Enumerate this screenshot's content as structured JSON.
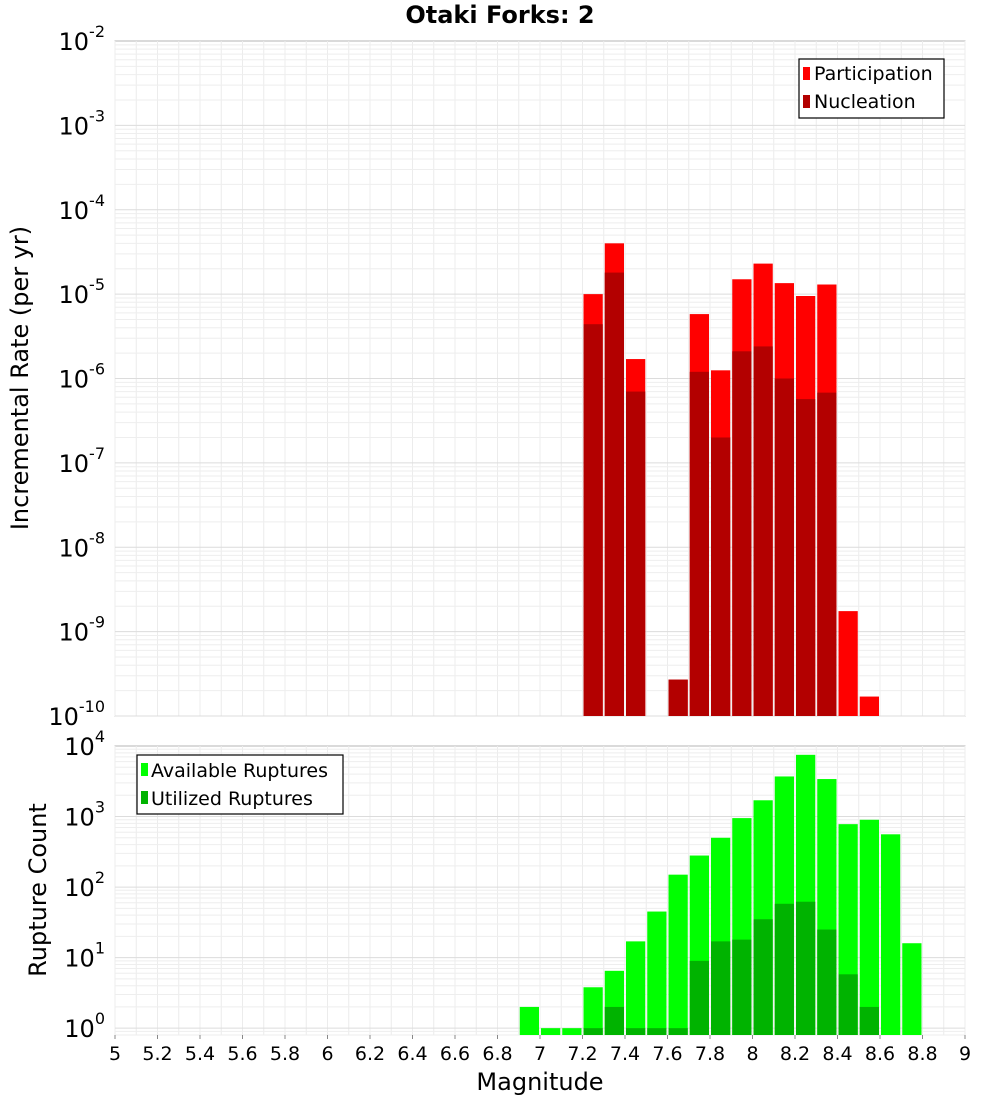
{
  "chart_data": [
    {
      "type": "bar",
      "title": "Otaki Forks: 2",
      "ylabel": "Incremental Rate (per yr)",
      "xlabel": "",
      "y_scale": "log",
      "ylim": [
        1e-10,
        0.01
      ],
      "xlim": [
        5,
        9
      ],
      "y_ticks": [
        {
          "base": "10",
          "exp": "-2",
          "value": 0.01
        },
        {
          "base": "10",
          "exp": "-3",
          "value": 0.001
        },
        {
          "base": "10",
          "exp": "-4",
          "value": 0.0001
        },
        {
          "base": "10",
          "exp": "-5",
          "value": 1e-05
        },
        {
          "base": "10",
          "exp": "-6",
          "value": 1e-06
        },
        {
          "base": "10",
          "exp": "-7",
          "value": 1e-07
        },
        {
          "base": "10",
          "exp": "-8",
          "value": 1e-08
        },
        {
          "base": "10",
          "exp": "-9",
          "value": 1e-09
        },
        {
          "base": "10",
          "exp": "-10",
          "value": 1e-10
        }
      ],
      "legend_placement": "top-right",
      "grid": true,
      "series": [
        {
          "name": "Participation",
          "color": "#ff0000",
          "points": [
            {
              "x": 7.25,
              "y": 1e-05
            },
            {
              "x": 7.35,
              "y": 4e-05
            },
            {
              "x": 7.45,
              "y": 1.7e-06
            },
            {
              "x": 7.65,
              "y": 2.7e-10
            },
            {
              "x": 7.75,
              "y": 5.8e-06
            },
            {
              "x": 7.85,
              "y": 1.25e-06
            },
            {
              "x": 7.95,
              "y": 1.5e-05
            },
            {
              "x": 8.05,
              "y": 2.3e-05
            },
            {
              "x": 8.15,
              "y": 1.35e-05
            },
            {
              "x": 8.25,
              "y": 9.5e-06
            },
            {
              "x": 8.35,
              "y": 1.3e-05
            },
            {
              "x": 8.45,
              "y": 1.75e-09
            },
            {
              "x": 8.55,
              "y": 1.7e-10
            }
          ]
        },
        {
          "name": "Nucleation",
          "color": "#b30000",
          "points": [
            {
              "x": 7.25,
              "y": 4.4e-06
            },
            {
              "x": 7.35,
              "y": 1.8e-05
            },
            {
              "x": 7.45,
              "y": 7e-07
            },
            {
              "x": 7.65,
              "y": 2.7e-10
            },
            {
              "x": 7.75,
              "y": 1.2e-06
            },
            {
              "x": 7.85,
              "y": 2e-07
            },
            {
              "x": 7.95,
              "y": 2.1e-06
            },
            {
              "x": 8.05,
              "y": 2.4e-06
            },
            {
              "x": 8.15,
              "y": 1e-06
            },
            {
              "x": 8.25,
              "y": 5.7e-07
            },
            {
              "x": 8.35,
              "y": 6.8e-07
            }
          ]
        }
      ]
    },
    {
      "type": "bar",
      "title": "",
      "ylabel": "Rupture Count",
      "xlabel": "Magnitude",
      "y_scale": "log",
      "ylim": [
        0.8,
        10000
      ],
      "xlim": [
        5,
        9
      ],
      "y_ticks": [
        {
          "base": "10",
          "exp": "4",
          "value": 10000
        },
        {
          "base": "10",
          "exp": "3",
          "value": 1000
        },
        {
          "base": "10",
          "exp": "2",
          "value": 100
        },
        {
          "base": "10",
          "exp": "1",
          "value": 10
        },
        {
          "base": "10",
          "exp": "0",
          "value": 1
        }
      ],
      "x_ticks": [
        "5",
        "5.2",
        "5.4",
        "5.6",
        "5.8",
        "6",
        "6.2",
        "6.4",
        "6.6",
        "6.8",
        "7",
        "7.2",
        "7.4",
        "7.6",
        "7.8",
        "8",
        "8.2",
        "8.4",
        "8.6",
        "8.8",
        "9"
      ],
      "legend_placement": "top-left",
      "grid": true,
      "series": [
        {
          "name": "Available Ruptures",
          "color": "#00ff00",
          "points": [
            {
              "x": 6.95,
              "y": 2
            },
            {
              "x": 7.05,
              "y": 1
            },
            {
              "x": 7.15,
              "y": 1
            },
            {
              "x": 7.25,
              "y": 3.8
            },
            {
              "x": 7.35,
              "y": 6.5
            },
            {
              "x": 7.45,
              "y": 17
            },
            {
              "x": 7.55,
              "y": 45
            },
            {
              "x": 7.65,
              "y": 150
            },
            {
              "x": 7.75,
              "y": 280
            },
            {
              "x": 7.85,
              "y": 500
            },
            {
              "x": 7.95,
              "y": 950
            },
            {
              "x": 8.05,
              "y": 1700
            },
            {
              "x": 8.15,
              "y": 3700
            },
            {
              "x": 8.25,
              "y": 7500
            },
            {
              "x": 8.35,
              "y": 3400
            },
            {
              "x": 8.45,
              "y": 780
            },
            {
              "x": 8.55,
              "y": 900
            },
            {
              "x": 8.65,
              "y": 560
            },
            {
              "x": 8.75,
              "y": 16
            }
          ]
        },
        {
          "name": "Utilized Ruptures",
          "color": "#00b300",
          "points": [
            {
              "x": 7.25,
              "y": 1
            },
            {
              "x": 7.35,
              "y": 2
            },
            {
              "x": 7.45,
              "y": 1
            },
            {
              "x": 7.55,
              "y": 1
            },
            {
              "x": 7.65,
              "y": 1
            },
            {
              "x": 7.75,
              "y": 9
            },
            {
              "x": 7.85,
              "y": 17
            },
            {
              "x": 7.95,
              "y": 18
            },
            {
              "x": 8.05,
              "y": 35
            },
            {
              "x": 8.15,
              "y": 58
            },
            {
              "x": 8.25,
              "y": 62
            },
            {
              "x": 8.35,
              "y": 25
            },
            {
              "x": 8.45,
              "y": 5.8
            },
            {
              "x": 8.55,
              "y": 2
            }
          ]
        }
      ]
    }
  ]
}
